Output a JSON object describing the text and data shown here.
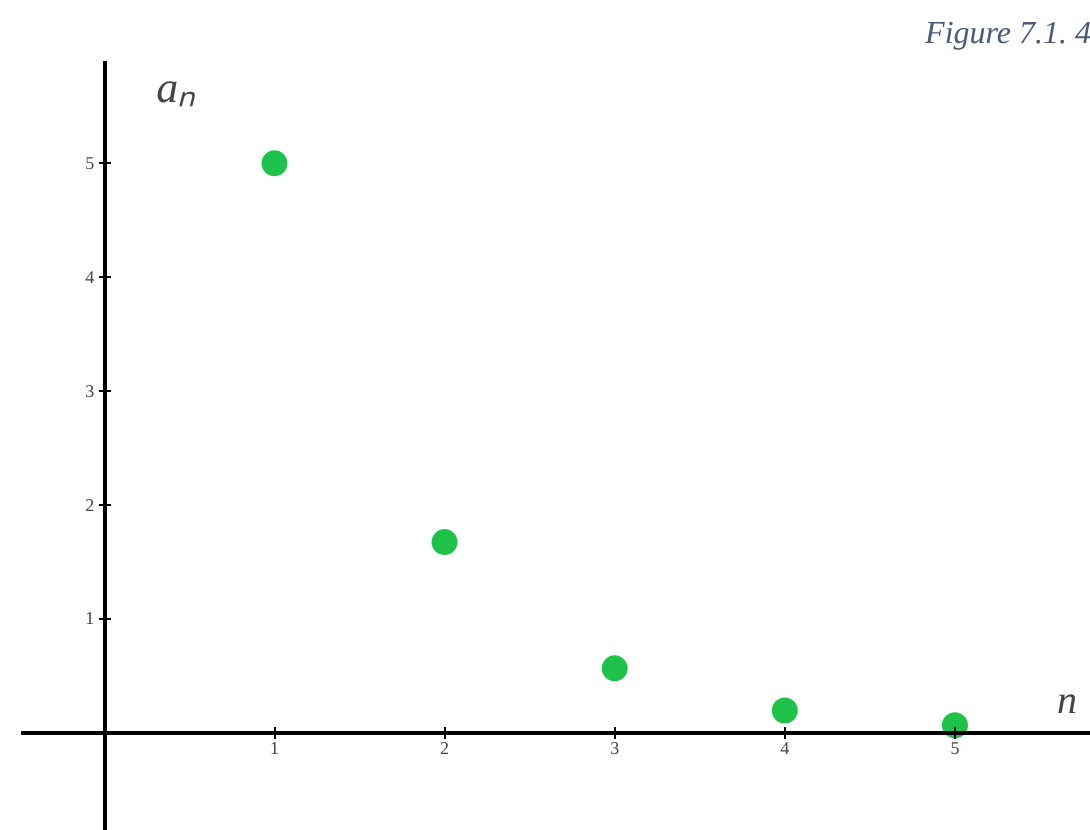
{
  "chart_data": {
    "type": "scatter",
    "title": "Figure 7.1. 4",
    "xlabel": "n",
    "ylabel": "aₙ",
    "x": [
      1,
      2,
      3,
      4,
      5
    ],
    "values": [
      5,
      1.67,
      0.56,
      0.19,
      0.06
    ],
    "color": "#1ec24a",
    "marker": "circle",
    "grid": false,
    "xlim": [
      -0.49,
      5.8
    ],
    "ylim": [
      -0.87,
      5.9
    ],
    "xticks": [
      1,
      2,
      3,
      4,
      5
    ],
    "yticks": [
      1,
      2,
      3,
      4,
      5
    ]
  }
}
